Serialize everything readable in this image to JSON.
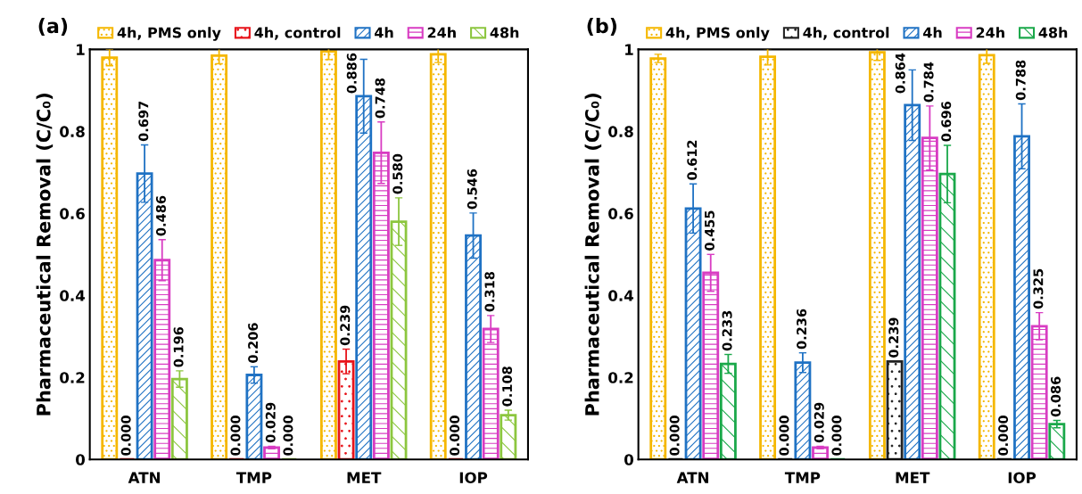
{
  "chart_data": [
    {
      "type": "bar",
      "title": "(a)",
      "ylabel": "Pharmaceutical Removal (C/C₀)",
      "categories": [
        "ATN",
        "TMP",
        "MET",
        "IOP"
      ],
      "ylim": [
        0,
        1
      ],
      "yticks": [
        0,
        0.2,
        0.4,
        0.6,
        0.8,
        1
      ],
      "grid": false,
      "legend": "top",
      "series": [
        {
          "name": "4h, PMS only",
          "color": "#f5b700",
          "values": [
            0.98,
            0.985,
            0.995,
            0.988
          ],
          "errors": [
            0.02,
            0.02,
            0.02,
            0.02
          ],
          "value_labels": [
            null,
            null,
            null,
            null
          ]
        },
        {
          "name": "4h, control",
          "color": "#e8141b",
          "values": [
            0.0,
            0.0,
            0.239,
            0.0
          ],
          "errors": [
            null,
            null,
            0.03,
            null
          ],
          "value_labels": [
            "0.000",
            "0.000",
            "0.239",
            "0.000"
          ]
        },
        {
          "name": "4h",
          "color": "#1f72c4",
          "values": [
            0.697,
            0.206,
            0.886,
            0.546
          ],
          "errors": [
            0.07,
            0.02,
            0.09,
            0.055
          ],
          "value_labels": [
            "0.697",
            "0.206",
            "0.886",
            "0.546"
          ]
        },
        {
          "name": "24h",
          "color": "#d83cc2",
          "values": [
            0.486,
            0.029,
            0.748,
            0.318
          ],
          "errors": [
            0.05,
            0.003,
            0.075,
            0.033
          ],
          "value_labels": [
            "0.486",
            "0.029",
            "0.748",
            "0.318"
          ]
        },
        {
          "name": "48h",
          "color": "#8cc63f",
          "values": [
            0.196,
            0.0,
            0.58,
            0.108
          ],
          "errors": [
            0.02,
            null,
            0.058,
            0.012
          ],
          "value_labels": [
            "0.196",
            "0.000",
            "0.580",
            "0.108"
          ]
        }
      ]
    },
    {
      "type": "bar",
      "title": "(b)",
      "ylabel": "Pharmaceutical Removal (C/C₀)",
      "categories": [
        "ATN",
        "TMP",
        "MET",
        "IOP"
      ],
      "ylim": [
        0,
        1
      ],
      "yticks": [
        0,
        0.2,
        0.4,
        0.6,
        0.8,
        1
      ],
      "grid": false,
      "legend": "top",
      "series": [
        {
          "name": "4h, PMS only",
          "color": "#f5b700",
          "values": [
            0.978,
            0.982,
            0.993,
            0.986
          ],
          "errors": [
            0.01,
            0.02,
            0.02,
            0.02
          ],
          "value_labels": [
            null,
            null,
            null,
            null
          ]
        },
        {
          "name": "4h, control",
          "color": "#222222",
          "values": [
            0.0,
            0.0,
            0.239,
            0.0
          ],
          "errors": [
            null,
            null,
            null,
            null
          ],
          "value_labels": [
            "0.000",
            "0.000",
            "0.239",
            "0.000"
          ]
        },
        {
          "name": "4h",
          "color": "#1f72c4",
          "values": [
            0.612,
            0.236,
            0.864,
            0.788
          ],
          "errors": [
            0.06,
            0.024,
            0.086,
            0.079
          ],
          "value_labels": [
            "0.612",
            "0.236",
            "0.864",
            "0.788"
          ]
        },
        {
          "name": "24h",
          "color": "#d83cc2",
          "values": [
            0.455,
            0.029,
            0.784,
            0.325
          ],
          "errors": [
            0.045,
            0.003,
            0.078,
            0.033
          ],
          "value_labels": [
            "0.455",
            "0.029",
            "0.784",
            "0.325"
          ]
        },
        {
          "name": "48h",
          "color": "#1aa84a",
          "values": [
            0.233,
            0.0,
            0.696,
            0.086
          ],
          "errors": [
            0.023,
            null,
            0.07,
            0.009
          ],
          "value_labels": [
            "0.233",
            "0.000",
            "0.696",
            "0.086"
          ]
        }
      ]
    }
  ]
}
